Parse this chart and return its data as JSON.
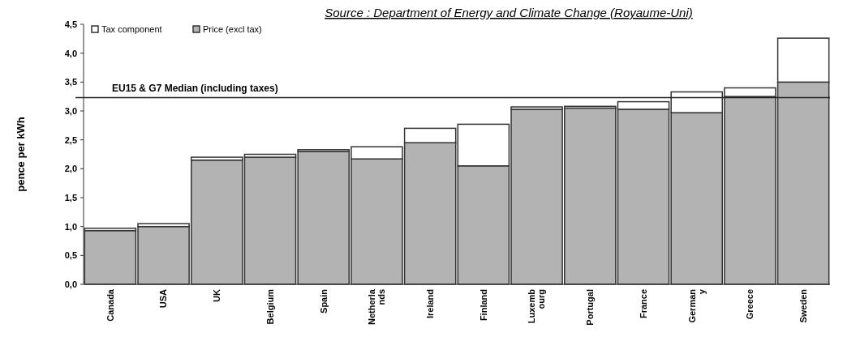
{
  "chart_data": {
    "type": "bar",
    "title": "Source : Department of Energy and Climate Change (Royaume-Uni)",
    "ylabel": "pence per kWh",
    "categories": [
      "Canada",
      "USA",
      "UK",
      "Belgium",
      "Spain",
      "Netherla\nnds",
      "Ireland",
      "Finland",
      "Luxemb\nourg",
      "Portugal",
      "France",
      "German\ny",
      "Greece",
      "Sweden"
    ],
    "stacked": true,
    "series": [
      {
        "name": "Price (excl tax)",
        "color": "#b3b3b3",
        "values": [
          0.93,
          1.0,
          2.15,
          2.2,
          2.3,
          2.17,
          2.45,
          2.05,
          3.03,
          3.05,
          3.03,
          2.97,
          3.25,
          3.5
        ]
      },
      {
        "name": "Tax component",
        "color": "#ffffff",
        "values": [
          0.04,
          0.05,
          0.05,
          0.05,
          0.03,
          0.21,
          0.25,
          0.72,
          0.04,
          0.03,
          0.13,
          0.36,
          0.15,
          0.76
        ]
      }
    ],
    "ylim": [
      0,
      4.5
    ],
    "yticks": [
      {
        "value": 0,
        "label": "0,0"
      },
      {
        "value": 0.5,
        "label": "0,5"
      },
      {
        "value": 1,
        "label": "1,0"
      },
      {
        "value": 1.5,
        "label": "1,5"
      },
      {
        "value": 2,
        "label": "2,0"
      },
      {
        "value": 2.5,
        "label": "2,5"
      },
      {
        "value": 3,
        "label": "3,0"
      },
      {
        "value": 3.5,
        "label": "3,5"
      },
      {
        "value": 4,
        "label": "4,0"
      },
      {
        "value": 4.5,
        "label": "4,5"
      }
    ],
    "ref_lines": [
      {
        "axis": "y",
        "value": 3.23,
        "label": "EU15 & G7 Median (including taxes)",
        "color": "#222222"
      }
    ],
    "legend": "top left",
    "grid": false
  }
}
